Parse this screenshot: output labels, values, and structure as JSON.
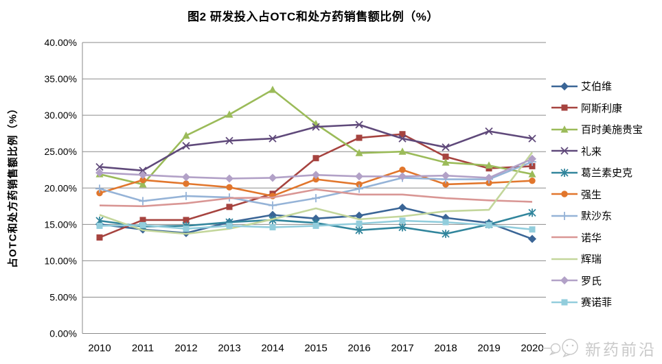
{
  "title": "图2 研发投入占OTC和处方药销售额比例（%）",
  "watermark": {
    "brand": "新药前沿",
    "logo": "wechat-bubbles-icon"
  },
  "axes": {
    "y_tick_labels": [
      "0.00%",
      "5.00%",
      "10.00%",
      "15.00%",
      "20.00%",
      "25.00%",
      "30.00%",
      "35.00%",
      "40.00%"
    ],
    "x_tick_labels": [
      "2010",
      "2011",
      "2012",
      "2013",
      "2014",
      "2015",
      "2016",
      "2017",
      "2018",
      "2019",
      "2020"
    ]
  },
  "colors": {
    "gridline": "#8a8a8a",
    "text": "#000000",
    "watermark": "#c9c9c9"
  },
  "chart_data": {
    "type": "line",
    "title": "图2 研发投入占OTC和处方药销售额比例（%）",
    "xlabel": "",
    "ylabel": "占OTC和处方药销售额比例（%）",
    "ylim": [
      0,
      40
    ],
    "y_tick_step": 5,
    "grid": true,
    "legend_position": "right",
    "categories": [
      2010,
      2011,
      2012,
      2013,
      2014,
      2015,
      2016,
      2017,
      2018,
      2019,
      2020
    ],
    "series": [
      {
        "id": "abbvie",
        "name": "艾伯维",
        "color": "#3A6596",
        "marker": "diamond",
        "values": [
          15.0,
          14.3,
          13.8,
          15.3,
          16.3,
          15.8,
          16.2,
          17.3,
          15.9,
          15.2,
          13.0
        ]
      },
      {
        "id": "astrazeneca",
        "name": "阿斯利康",
        "color": "#A6433F",
        "marker": "square",
        "values": [
          13.2,
          15.6,
          15.6,
          17.4,
          19.2,
          24.1,
          26.9,
          27.4,
          24.3,
          22.7,
          23.0
        ]
      },
      {
        "id": "bms",
        "name": "百时美施贵宝",
        "color": "#9BBB59",
        "marker": "triangle-up",
        "values": [
          21.9,
          20.5,
          27.2,
          30.1,
          33.5,
          28.8,
          24.8,
          25.0,
          23.5,
          23.1,
          21.9
        ]
      },
      {
        "id": "lilly",
        "name": "礼来",
        "color": "#5F497A",
        "marker": "x",
        "values": [
          22.9,
          22.4,
          25.8,
          26.5,
          26.8,
          28.4,
          28.7,
          26.8,
          25.6,
          27.8,
          26.8
        ]
      },
      {
        "id": "gsk",
        "name": "葛兰素史克",
        "color": "#31859C",
        "marker": "asterisk",
        "values": [
          15.5,
          14.7,
          14.8,
          15.3,
          15.6,
          15.2,
          14.2,
          14.6,
          13.7,
          15.0,
          16.6
        ]
      },
      {
        "id": "jnj",
        "name": "强生",
        "color": "#E1762C",
        "marker": "circle",
        "values": [
          19.3,
          21.1,
          20.6,
          20.1,
          18.9,
          21.2,
          20.5,
          22.5,
          20.5,
          20.7,
          21.0
        ]
      },
      {
        "id": "merck",
        "name": "默沙东",
        "color": "#95B3D7",
        "marker": "plus",
        "values": [
          19.9,
          18.2,
          18.9,
          18.7,
          17.6,
          18.6,
          19.9,
          21.4,
          21.2,
          21.2,
          23.6
        ]
      },
      {
        "id": "novartis",
        "name": "诺华",
        "color": "#D99694",
        "marker": "none",
        "values": [
          17.6,
          17.5,
          17.9,
          18.6,
          18.7,
          19.8,
          19.1,
          19.1,
          18.6,
          18.3,
          18.1
        ]
      },
      {
        "id": "pfizer",
        "name": "辉瑞",
        "color": "#C3D69B",
        "marker": "none",
        "values": [
          16.3,
          14.2,
          13.7,
          14.4,
          15.7,
          17.2,
          15.7,
          16.1,
          16.8,
          17.0,
          24.9
        ]
      },
      {
        "id": "roche",
        "name": "罗氏",
        "color": "#B2A1C7",
        "marker": "diamond",
        "values": [
          22.1,
          21.8,
          21.5,
          21.3,
          21.4,
          21.8,
          21.6,
          21.6,
          21.7,
          21.4,
          24.0
        ]
      },
      {
        "id": "sanofi",
        "name": "赛诺菲",
        "color": "#92CDDC",
        "marker": "square",
        "values": [
          14.8,
          14.9,
          14.4,
          14.8,
          14.6,
          14.8,
          15.1,
          15.5,
          15.3,
          14.9,
          14.3
        ]
      }
    ]
  }
}
